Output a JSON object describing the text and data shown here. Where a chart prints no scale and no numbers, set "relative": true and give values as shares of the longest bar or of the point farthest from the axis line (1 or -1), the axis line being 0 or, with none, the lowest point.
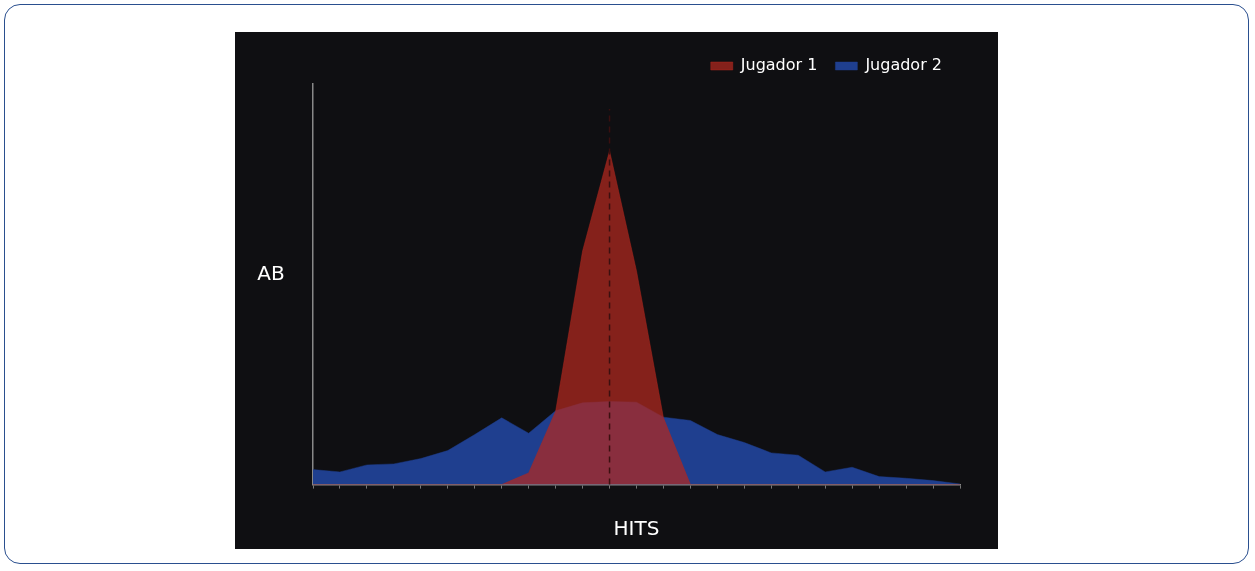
{
  "chart_data": {
    "type": "area",
    "relative": true,
    "xlabel": "HITS",
    "ylabel": "AB",
    "legend": "top right",
    "grid": false,
    "categories": [
      null,
      null,
      null,
      null,
      null,
      null,
      null,
      null,
      null,
      null,
      null,
      null,
      null,
      null,
      null,
      null,
      null,
      null,
      null,
      null,
      null,
      null,
      null,
      null,
      null
    ],
    "series": [
      {
        "name": "Jugador 2",
        "color": "#1f3f8f",
        "values": [
          0.045,
          0.038,
          0.059,
          0.062,
          0.078,
          0.102,
          0.15,
          0.2,
          0.154,
          0.221,
          0.245,
          0.249,
          0.247,
          0.202,
          0.192,
          0.15,
          0.126,
          0.095,
          0.088,
          0.038,
          0.052,
          0.024,
          0.019,
          0.012,
          0.002
        ]
      },
      {
        "name": "Jugador 1",
        "color": "#b3281f",
        "values": [
          0,
          0,
          0,
          0,
          0,
          0,
          0,
          0,
          0.035,
          0.22,
          0.7,
          1,
          0.64,
          0.2,
          0,
          0,
          0,
          0,
          0,
          0,
          0,
          0,
          0,
          0,
          0
        ]
      }
    ]
  }
}
